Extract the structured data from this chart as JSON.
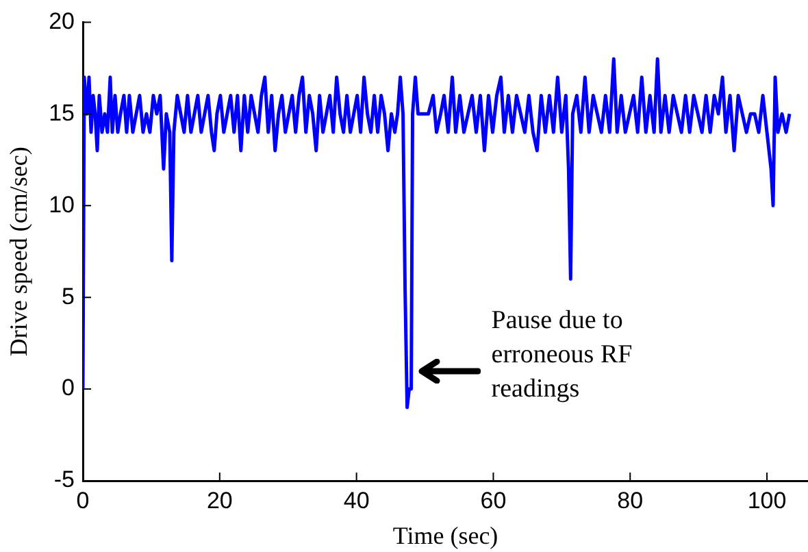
{
  "chart_data": {
    "type": "line",
    "xlabel": "Time (sec)",
    "ylabel": "Drive speed (cm/sec)",
    "xlim": [
      0,
      106
    ],
    "xticks": [
      0,
      20,
      40,
      60,
      80,
      100
    ],
    "ylim": [
      -5,
      20
    ],
    "yticks": [
      -5,
      0,
      5,
      10,
      15,
      20
    ],
    "grid": false,
    "marker": "none",
    "line_style": "solid",
    "x": [
      0,
      0.2,
      0.6,
      0.9,
      1.2,
      1.5,
      1.8,
      2.1,
      2.4,
      2.8,
      3.2,
      3.6,
      4.0,
      4.3,
      4.7,
      5.1,
      5.5,
      6.0,
      6.4,
      6.8,
      7.3,
      7.8,
      8.3,
      8.8,
      9.3,
      9.8,
      10.3,
      10.8,
      11.3,
      11.8,
      12.2,
      12.7,
      13.0,
      13.3,
      13.8,
      14.3,
      14.8,
      15.3,
      15.8,
      16.3,
      16.8,
      17.3,
      17.8,
      18.3,
      18.8,
      19.2,
      19.6,
      20.1,
      20.6,
      21.1,
      21.6,
      22.1,
      22.6,
      23.1,
      23.6,
      24.1,
      24.6,
      25.1,
      25.6,
      26.1,
      26.6,
      27.1,
      27.6,
      28.1,
      28.6,
      29.1,
      29.6,
      30.1,
      30.6,
      31.1,
      31.6,
      32.1,
      32.6,
      33.1,
      33.6,
      34.1,
      34.6,
      35.1,
      35.6,
      36.1,
      36.6,
      37.1,
      37.6,
      38.1,
      38.6,
      39.1,
      39.6,
      40.1,
      40.6,
      41.1,
      41.6,
      42.1,
      42.6,
      43.1,
      43.6,
      44.1,
      44.6,
      45.1,
      45.6,
      46.0,
      46.4,
      46.8,
      47.1,
      47.4,
      47.7,
      48.0,
      48.2,
      48.6,
      49.0,
      49.5,
      50.5,
      51.2,
      51.7,
      52.3,
      52.8,
      53.4,
      54.0,
      54.5,
      55.1,
      55.7,
      56.3,
      56.9,
      57.5,
      58.1,
      58.7,
      59.3,
      59.9,
      60.5,
      61.1,
      61.6,
      62.2,
      62.8,
      63.4,
      64.0,
      64.6,
      65.2,
      65.8,
      66.4,
      67.0,
      67.6,
      68.2,
      68.8,
      69.4,
      70.0,
      70.6,
      71.0,
      71.3,
      71.6,
      72.2,
      72.8,
      73.4,
      74.0,
      74.6,
      75.2,
      75.8,
      76.4,
      77.0,
      77.6,
      78.1,
      78.7,
      79.3,
      79.9,
      80.5,
      81.1,
      81.7,
      82.3,
      82.9,
      83.5,
      84.0,
      84.5,
      85.1,
      85.7,
      86.3,
      86.9,
      87.5,
      88.1,
      88.7,
      89.3,
      89.9,
      90.5,
      91.1,
      91.7,
      92.3,
      92.9,
      93.5,
      94.0,
      94.6,
      95.2,
      95.8,
      96.4,
      97.0,
      97.6,
      98.2,
      98.8,
      99.4,
      100.0,
      100.6,
      100.9,
      101.2,
      101.6,
      102.2,
      102.8,
      103.3
    ],
    "series": [
      {
        "color": "#0000ff",
        "values": [
          0,
          17,
          15,
          17,
          14,
          16,
          15,
          13,
          16,
          14,
          15,
          14,
          17,
          14,
          16,
          14,
          15,
          16,
          14,
          16,
          14,
          15,
          16,
          14,
          15,
          14,
          16,
          15,
          16,
          12,
          15,
          14,
          7,
          14,
          16,
          15,
          14,
          16,
          14,
          15,
          16,
          14,
          15,
          16,
          14,
          13,
          15,
          16,
          14,
          15,
          16,
          14,
          16,
          13,
          16,
          14,
          16,
          15,
          14,
          16,
          17,
          14,
          16,
          13,
          15,
          16,
          14,
          15,
          16,
          14,
          16,
          17,
          14,
          16,
          15,
          13,
          16,
          14,
          15,
          16,
          14,
          17,
          15,
          14,
          16,
          14,
          15,
          16,
          14,
          17,
          15,
          14,
          16,
          14,
          16,
          15,
          13,
          15,
          14,
          15,
          17,
          15,
          5.5,
          -1,
          0,
          0,
          15,
          17,
          15,
          15,
          15,
          16,
          14,
          15,
          16,
          14,
          17,
          14,
          16,
          14,
          15,
          16,
          14,
          16,
          13,
          16,
          14,
          16,
          17,
          14,
          16,
          14,
          16,
          15,
          14,
          16,
          14,
          13,
          16,
          14,
          16,
          14,
          17,
          14,
          16,
          12,
          6,
          15,
          16,
          14,
          17,
          14,
          16,
          15,
          14,
          16,
          14,
          18,
          14,
          16,
          14,
          15,
          16,
          14,
          17,
          14,
          16,
          14,
          18,
          14,
          16,
          14,
          16,
          15,
          14,
          16,
          14,
          16,
          15,
          14,
          16,
          14,
          16,
          15,
          17,
          14,
          16,
          13,
          16,
          15,
          14,
          15,
          15,
          14,
          16,
          14,
          12,
          10,
          17,
          14,
          15,
          14,
          15
        ]
      }
    ],
    "annotations": [
      {
        "text": "Pause due to erroneous RF readings",
        "x": 48.5,
        "y": 1
      }
    ]
  }
}
